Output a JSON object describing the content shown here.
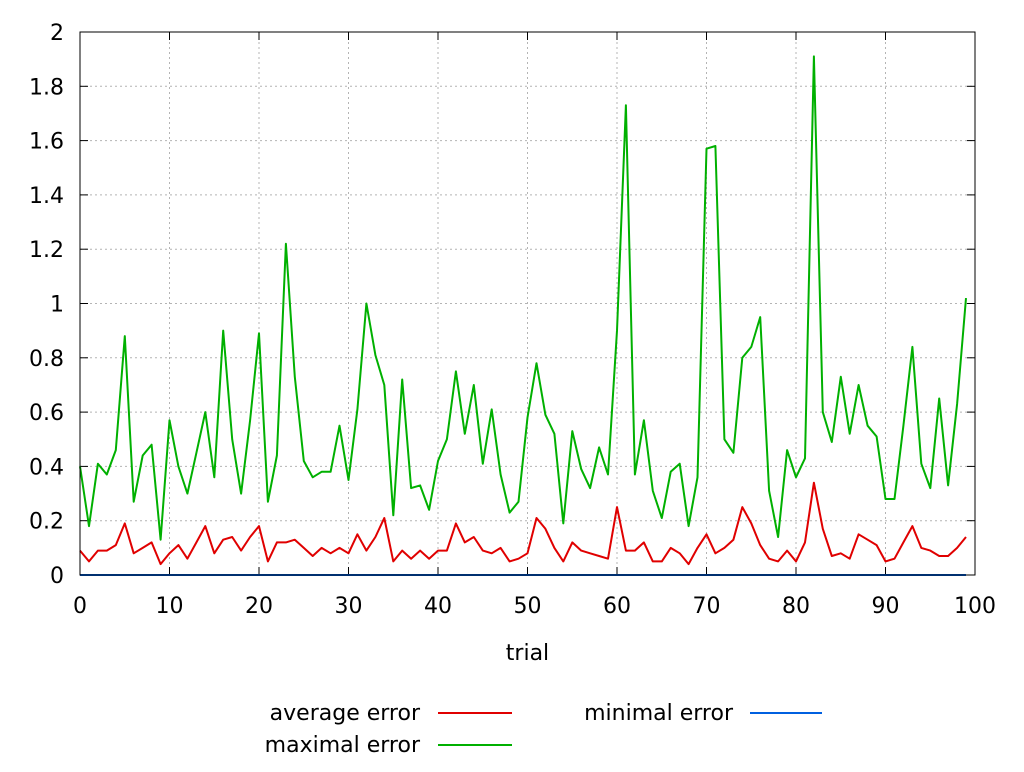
{
  "chart_data": {
    "type": "line",
    "title": "",
    "xlabel": "trial",
    "ylabel": "",
    "xlim": [
      0,
      100
    ],
    "ylim": [
      0,
      2
    ],
    "x_ticks": [
      "0",
      "10",
      "20",
      "30",
      "40",
      "50",
      "60",
      "70",
      "80",
      "90",
      "100"
    ],
    "y_ticks": [
      "0",
      "0.2",
      "0.4",
      "0.6",
      "0.8",
      "1",
      "1.2",
      "1.4",
      "1.6",
      "1.8",
      "2"
    ],
    "grid": true,
    "legend_position": "bottom",
    "x": [
      0,
      1,
      2,
      3,
      4,
      5,
      6,
      7,
      8,
      9,
      10,
      11,
      12,
      13,
      14,
      15,
      16,
      17,
      18,
      19,
      20,
      21,
      22,
      23,
      24,
      25,
      26,
      27,
      28,
      29,
      30,
      31,
      32,
      33,
      34,
      35,
      36,
      37,
      38,
      39,
      40,
      41,
      42,
      43,
      44,
      45,
      46,
      47,
      48,
      49,
      50,
      51,
      52,
      53,
      54,
      55,
      56,
      57,
      58,
      59,
      60,
      61,
      62,
      63,
      64,
      65,
      66,
      67,
      68,
      69,
      70,
      71,
      72,
      73,
      74,
      75,
      76,
      77,
      78,
      79,
      80,
      81,
      82,
      83,
      84,
      85,
      86,
      87,
      88,
      89,
      90,
      91,
      92,
      93,
      94,
      95,
      96,
      97,
      98,
      99
    ],
    "series": [
      {
        "name": "average error",
        "color": "#e00000",
        "values": [
          0.09,
          0.05,
          0.09,
          0.09,
          0.11,
          0.19,
          0.08,
          0.1,
          0.12,
          0.04,
          0.08,
          0.11,
          0.06,
          0.12,
          0.18,
          0.08,
          0.13,
          0.14,
          0.09,
          0.14,
          0.18,
          0.05,
          0.12,
          0.12,
          0.13,
          0.1,
          0.07,
          0.1,
          0.08,
          0.1,
          0.08,
          0.15,
          0.09,
          0.14,
          0.21,
          0.05,
          0.09,
          0.06,
          0.09,
          0.06,
          0.09,
          0.09,
          0.19,
          0.12,
          0.14,
          0.09,
          0.08,
          0.1,
          0.05,
          0.06,
          0.08,
          0.21,
          0.17,
          0.1,
          0.05,
          0.12,
          0.09,
          0.08,
          0.07,
          0.06,
          0.25,
          0.09,
          0.09,
          0.12,
          0.05,
          0.05,
          0.1,
          0.08,
          0.04,
          0.1,
          0.15,
          0.08,
          0.1,
          0.13,
          0.25,
          0.19,
          0.11,
          0.06,
          0.05,
          0.09,
          0.05,
          0.12,
          0.34,
          0.17,
          0.07,
          0.08,
          0.06,
          0.15,
          0.13,
          0.11,
          0.05,
          0.06,
          0.12,
          0.18,
          0.1,
          0.09,
          0.07,
          0.07,
          0.1,
          0.14
        ]
      },
      {
        "name": "maximal error",
        "color": "#00b000",
        "values": [
          0.4,
          0.18,
          0.41,
          0.37,
          0.46,
          0.88,
          0.27,
          0.44,
          0.48,
          0.13,
          0.57,
          0.4,
          0.3,
          0.45,
          0.6,
          0.36,
          0.9,
          0.5,
          0.3,
          0.57,
          0.89,
          0.27,
          0.44,
          1.22,
          0.73,
          0.42,
          0.36,
          0.38,
          0.38,
          0.55,
          0.35,
          0.61,
          1.0,
          0.81,
          0.7,
          0.22,
          0.72,
          0.32,
          0.33,
          0.24,
          0.42,
          0.5,
          0.75,
          0.52,
          0.7,
          0.41,
          0.61,
          0.37,
          0.23,
          0.27,
          0.58,
          0.78,
          0.59,
          0.52,
          0.19,
          0.53,
          0.39,
          0.32,
          0.47,
          0.37,
          0.9,
          1.73,
          0.37,
          0.57,
          0.31,
          0.21,
          0.38,
          0.41,
          0.18,
          0.36,
          1.57,
          1.58,
          0.5,
          0.45,
          0.8,
          0.84,
          0.95,
          0.31,
          0.14,
          0.46,
          0.36,
          0.43,
          1.91,
          0.6,
          0.49,
          0.73,
          0.52,
          0.7,
          0.55,
          0.51,
          0.28,
          0.28,
          0.55,
          0.84,
          0.41,
          0.32,
          0.65,
          0.33,
          0.63,
          1.02
        ]
      },
      {
        "name": "minimal error",
        "color": "#0060e0",
        "values": [
          0,
          0,
          0,
          0,
          0,
          0,
          0,
          0,
          0,
          0,
          0,
          0,
          0,
          0,
          0,
          0,
          0,
          0,
          0,
          0,
          0,
          0,
          0,
          0,
          0,
          0,
          0,
          0,
          0,
          0,
          0,
          0,
          0,
          0,
          0,
          0,
          0,
          0,
          0,
          0,
          0,
          0,
          0,
          0,
          0,
          0,
          0,
          0,
          0,
          0,
          0,
          0,
          0,
          0,
          0,
          0,
          0,
          0,
          0,
          0,
          0,
          0,
          0,
          0,
          0,
          0,
          0,
          0,
          0,
          0,
          0,
          0,
          0,
          0,
          0,
          0,
          0,
          0,
          0,
          0,
          0,
          0,
          0,
          0,
          0,
          0,
          0,
          0,
          0,
          0,
          0,
          0,
          0,
          0,
          0,
          0,
          0,
          0,
          0,
          0
        ]
      }
    ]
  }
}
